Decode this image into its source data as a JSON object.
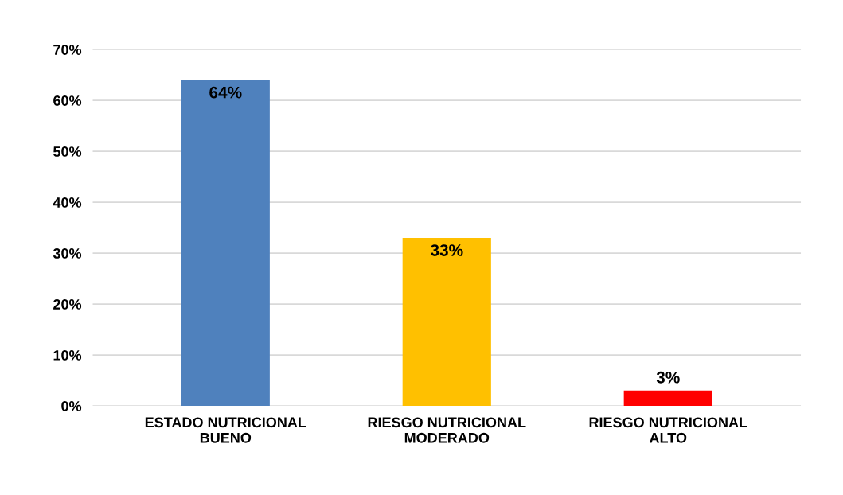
{
  "chart_data": {
    "type": "bar",
    "categories": [
      "ESTADO NUTRICIONAL BUENO",
      "RIESGO NUTRICIONAL MODERADO",
      "RIESGO NUTRICIONAL ALTO"
    ],
    "values": [
      64,
      33,
      3
    ],
    "colors": [
      "#4f81bd",
      "#ffc000",
      "#ff0000"
    ],
    "value_labels": [
      "64%",
      "33%",
      "3%"
    ],
    "ylim": [
      0,
      70
    ],
    "yticks": [
      {
        "value": 0,
        "label": "0%"
      },
      {
        "value": 10,
        "label": "10%"
      },
      {
        "value": 20,
        "label": "20%"
      },
      {
        "value": 30,
        "label": "30%"
      },
      {
        "value": 40,
        "label": "40%"
      },
      {
        "value": 50,
        "label": "50%"
      },
      {
        "value": 60,
        "label": "60%"
      },
      {
        "value": 70,
        "label": "70%"
      }
    ],
    "grid": "y",
    "legend": false
  }
}
